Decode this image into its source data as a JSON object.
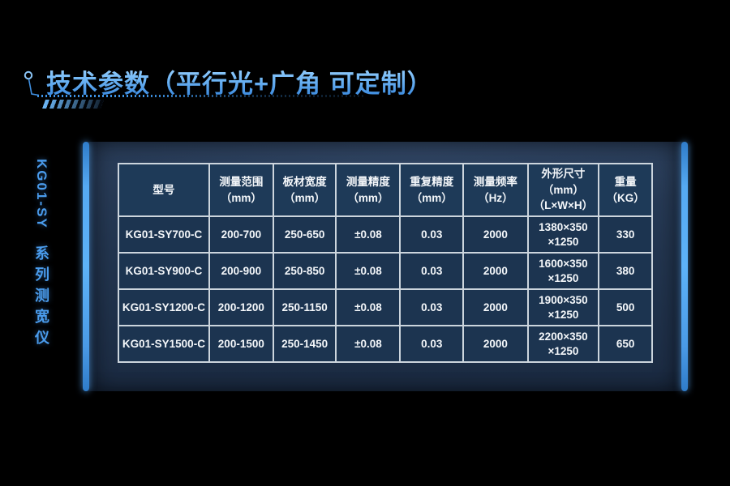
{
  "header": {
    "title": "技术参数（平行光+广角 可定制）"
  },
  "sidebar": {
    "model": "KG01-SY",
    "series": "系列测宽仪"
  },
  "table": {
    "columns": [
      {
        "label": "型号",
        "unit": ""
      },
      {
        "label": "测量范围",
        "unit": "（mm）"
      },
      {
        "label": "板材宽度",
        "unit": "（mm）"
      },
      {
        "label": "测量精度",
        "unit": "（mm）"
      },
      {
        "label": "重复精度",
        "unit": "（mm）"
      },
      {
        "label": "测量频率",
        "unit": "（Hz）"
      },
      {
        "label": "外形尺寸",
        "unit": "（mm）\n（L×W×H）"
      },
      {
        "label": "重量",
        "unit": "（KG）"
      }
    ],
    "column_widths_percent": [
      17,
      12,
      11.8,
      12,
      11.8,
      12.1,
      13.3,
      10
    ],
    "rows": [
      [
        "KG01-SY700-C",
        "200-700",
        "250-650",
        "±0.08",
        "0.03",
        "2000",
        "1380×350\n×1250",
        "330"
      ],
      [
        "KG01-SY900-C",
        "200-900",
        "250-850",
        "±0.08",
        "0.03",
        "2000",
        "1600×350\n×1250",
        "380"
      ],
      [
        "KG01-SY1200-C",
        "200-1200",
        "250-1150",
        "±0.08",
        "0.03",
        "2000",
        "1900×350\n×1250",
        "500"
      ],
      [
        "KG01-SY1500-C",
        "200-1500",
        "250-1450",
        "±0.08",
        "0.03",
        "2000",
        "2200×350\n×1250",
        "650"
      ]
    ]
  },
  "colors": {
    "background": "#000000",
    "accent_blue": "#4da2f0",
    "title_blue_top": "#a9d8ff",
    "title_blue_bottom": "#2f7fd8",
    "side_text_blue": "#4a9ced",
    "panel_bg": "#223450",
    "header_cell_bg": "#1e3a58",
    "data_cell_bg": "#1c3450",
    "table_border": "#ccd5dd",
    "cell_text": "#f4f7fa"
  }
}
